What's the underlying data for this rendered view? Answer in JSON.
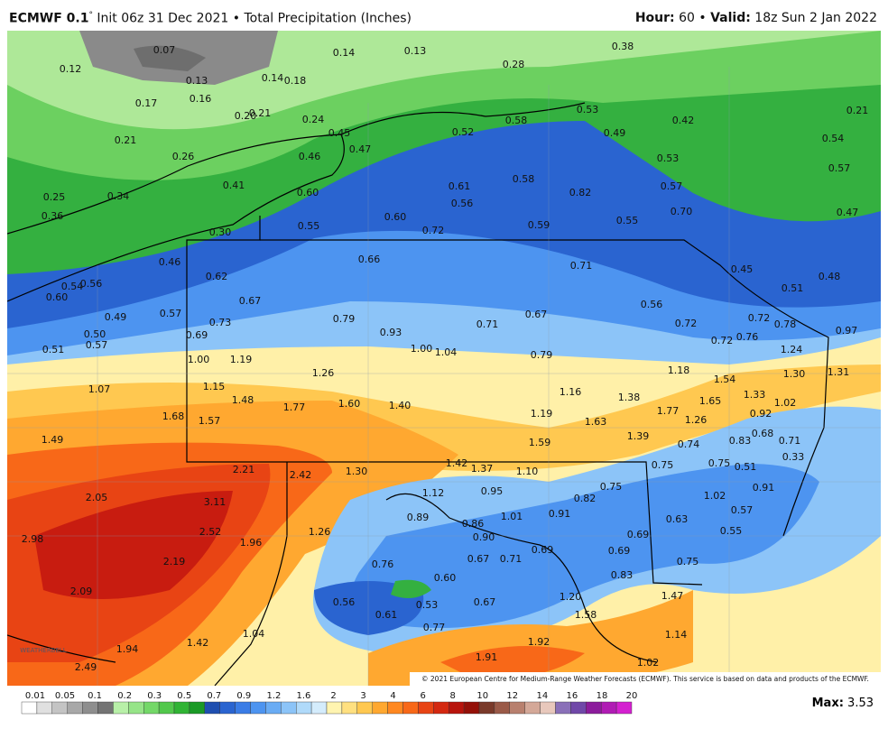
{
  "header": {
    "model": "ECMWF 0.1",
    "degree": "°",
    "init": "Init 06z 31 Dec 2021",
    "separator": "•",
    "title": "Total Precipitation (Inches)",
    "hour_label": "Hour:",
    "hour": "60",
    "valid_label": "Valid:",
    "valid": "18z Sun 2 Jan 2022"
  },
  "map": {
    "labels": [
      "0.07",
      "0.12",
      "0.14",
      "0.13",
      "0.38",
      "0.28",
      "0.13",
      "0.14",
      "0.18",
      "0.16",
      "0.17",
      "0.20",
      "0.21",
      "0.24",
      "0.58",
      "0.53",
      "0.42",
      "0.21",
      "0.45",
      "0.52",
      "0.49",
      "0.54",
      "0.21",
      "0.47",
      "0.46",
      "0.26",
      "0.53",
      "0.57",
      "0.41",
      "0.61",
      "0.58",
      "0.82",
      "0.57",
      "0.25",
      "0.34",
      "0.60",
      "0.56",
      "0.70",
      "0.47",
      "0.36",
      "0.60",
      "0.55",
      "0.72",
      "0.59",
      "0.55",
      "0.30",
      "0.66",
      "0.71",
      "0.46",
      "0.45",
      "0.48",
      "0.51",
      "0.62",
      "0.56",
      "0.54",
      "0.60",
      "0.67",
      "0.56",
      "0.49",
      "0.57",
      "0.79",
      "0.71",
      "0.67",
      "0.72",
      "0.73",
      "0.72",
      "0.78",
      "0.93",
      "0.50",
      "0.69",
      "0.76",
      "0.72",
      "0.97",
      "0.51",
      "0.57",
      "1.00",
      "1.04",
      "0.79",
      "1.24",
      "1.00",
      "1.19",
      "1.26",
      "1.18",
      "1.54",
      "1.30",
      "1.31",
      "1.07",
      "1.15",
      "1.16",
      "1.38",
      "1.33",
      "1.48",
      "1.77",
      "1.60",
      "1.40",
      "1.65",
      "1.02",
      "1.19",
      "1.77",
      "0.92",
      "1.68",
      "1.57",
      "1.63",
      "1.26",
      "0.68",
      "1.39",
      "0.83",
      "0.71",
      "1.49",
      "1.59",
      "0.74",
      "0.33",
      "1.42",
      "1.37",
      "0.75",
      "0.75",
      "0.51",
      "2.21",
      "2.42",
      "1.30",
      "1.10",
      "0.91",
      "1.12",
      "0.95",
      "0.75",
      "0.82",
      "1.02",
      "2.05",
      "3.11",
      "0.89",
      "1.01",
      "0.91",
      "0.57",
      "0.63",
      "0.86",
      "2.52",
      "1.26",
      "0.90",
      "0.69",
      "0.55",
      "2.98",
      "1.96",
      "0.69",
      "0.69",
      "0.71",
      "2.19",
      "0.76",
      "0.67",
      "0.75",
      "0.60",
      "0.83",
      "2.09",
      "1.20",
      "1.47",
      "0.56",
      "0.53",
      "0.67",
      "1.58",
      "0.61",
      "0.77",
      "1.04",
      "1.14",
      "1.42",
      "1.94",
      "1.92",
      "1.91",
      "2.49",
      "1.02"
    ],
    "watermark": "WEATHERBELL",
    "copyright": "© 2021 European Centre for Medium-Range Weather Forecasts (ECMWF). This service is based on data and products of the ECMWF."
  },
  "colorbar": {
    "ticks": [
      "0.01",
      "0.05",
      "0.1",
      "0.2",
      "0.3",
      "0.5",
      "0.7",
      "0.9",
      "1.2",
      "1.6",
      "2",
      "3",
      "4",
      "6",
      "8",
      "10",
      "12",
      "14",
      "16",
      "18",
      "20"
    ],
    "colors": [
      "#ffffff",
      "#e0e0e0",
      "#c4c4c4",
      "#a8a8a8",
      "#8e8e8e",
      "#747474",
      "#b8f0a8",
      "#96e488",
      "#74d868",
      "#52c84c",
      "#30b434",
      "#1a9a26",
      "#1f4fb0",
      "#2a64d0",
      "#3a7ce6",
      "#4d94f0",
      "#6aacf4",
      "#8cc4f8",
      "#b0dafa",
      "#d4ecfc",
      "#fff4b0",
      "#ffe080",
      "#ffc850",
      "#ffa830",
      "#ff8820",
      "#f86818",
      "#e84414",
      "#d42810",
      "#b8140c",
      "#941008",
      "#7a3a2a",
      "#9a5a48",
      "#b8806e",
      "#d4a898",
      "#e8c8bc",
      "#8a70b8",
      "#7048a8",
      "#8c1c9c",
      "#b01cb4",
      "#d420d0"
    ]
  },
  "max": {
    "label": "Max:",
    "value": "3.53"
  }
}
